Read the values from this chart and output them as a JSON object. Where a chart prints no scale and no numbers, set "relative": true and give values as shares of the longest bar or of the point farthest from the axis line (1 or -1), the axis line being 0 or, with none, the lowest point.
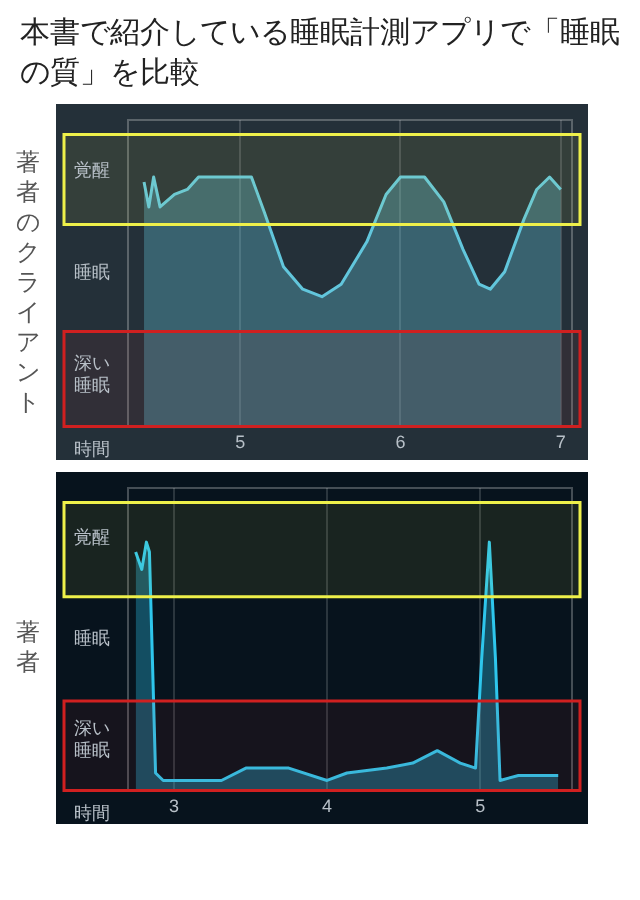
{
  "chart_data": [
    {
      "type": "area",
      "title": "本書で紹介している睡眠計測アプリで「睡眠の質」を比較",
      "ylabel": "著者のクライアント",
      "xlabel": "時間",
      "grid": "x",
      "relative": true,
      "x": [
        4.4,
        4.43,
        4.46,
        4.5,
        4.59,
        4.67,
        4.74,
        5.07,
        5.15,
        5.27,
        5.39,
        5.51,
        5.63,
        5.79,
        5.91,
        6.0,
        6.15,
        6.27,
        6.39,
        6.49,
        6.56,
        6.65,
        6.77,
        6.85,
        6.93,
        7.0
      ],
      "series": [
        {
          "color": "#62c6dc",
          "values": [
            0.98,
            0.88,
            1,
            0.88,
            0.93,
            0.95,
            1,
            1,
            0.86,
            0.64,
            0.55,
            0.52,
            0.57,
            0.74,
            0.93,
            1,
            1,
            0.9,
            0.71,
            0.57,
            0.55,
            0.62,
            0.83,
            0.95,
            1,
            0.95
          ]
        }
      ],
      "xlim": [
        4.3,
        7.07
      ],
      "xticks": [
        5,
        6,
        7
      ],
      "annotations": [
        "覚醒",
        "睡眠",
        "深い睡眠"
      ],
      "bands": [
        {
          "axis": "y",
          "from": 0.81,
          "to": 1.17,
          "color": "#eef04a"
        },
        {
          "axis": "y",
          "from": 0,
          "to": 0.38,
          "color": "#d02020"
        }
      ]
    },
    {
      "type": "area",
      "ylabel": "著者",
      "xlabel": "時間",
      "grid": "x",
      "relative": true,
      "x": [
        2.75,
        2.79,
        2.82,
        2.84,
        2.88,
        2.93,
        3.1,
        3.31,
        3.47,
        3.75,
        4.0,
        4.13,
        4.39,
        4.56,
        4.72,
        4.87,
        4.97,
        5.01,
        5.06,
        5.1,
        5.13,
        5.25,
        5.51
      ],
      "series": [
        {
          "color": "#2ec6ec",
          "values": [
            0.96,
            0.89,
            1,
            0.96,
            0.07,
            0.04,
            0.04,
            0.04,
            0.09,
            0.09,
            0.04,
            0.07,
            0.09,
            0.11,
            0.16,
            0.11,
            0.09,
            0.53,
            1,
            0.53,
            0.04,
            0.06,
            0.06
          ]
        }
      ],
      "xlim": [
        2.7,
        5.6
      ],
      "xticks": [
        3,
        4,
        5
      ],
      "annotations": [
        "覚醒",
        "睡眠",
        "深い睡眠"
      ],
      "bands": [
        {
          "axis": "y",
          "from": 0.78,
          "to": 1.16,
          "color": "#eef04a"
        },
        {
          "axis": "y",
          "from": 0,
          "to": 0.36,
          "color": "#d02020"
        }
      ]
    }
  ]
}
